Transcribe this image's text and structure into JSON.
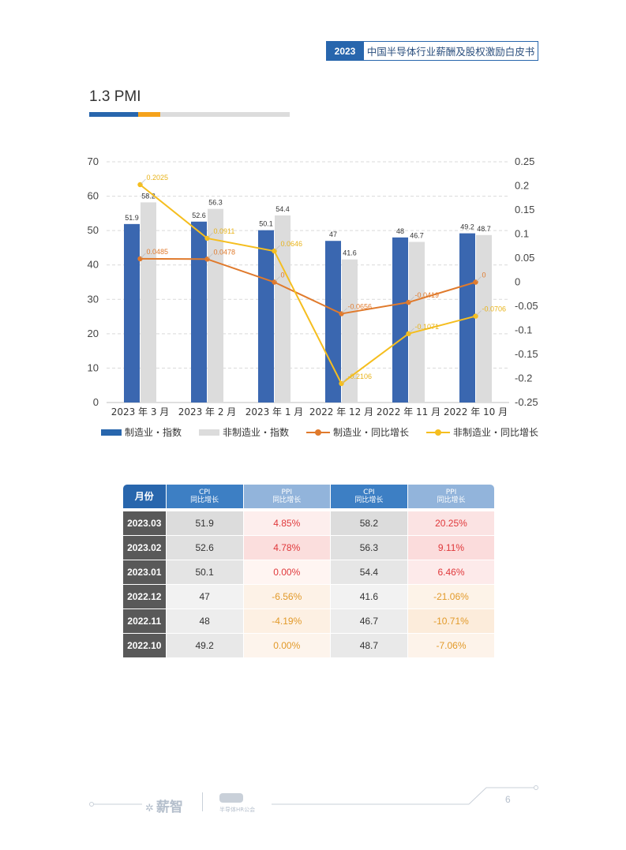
{
  "header": {
    "year": "2023",
    "title": "中国半导体行业薪酬及股权激励白皮书"
  },
  "section": {
    "title": "1.3 PMI"
  },
  "colors": {
    "manufacturing": "#3a67b0",
    "non_manufacturing": "#dcdcdc",
    "mfg_growth": "#e07a2c",
    "nonmfg_growth": "#f5be1f",
    "brand": "#2866ad"
  },
  "chart_data": {
    "type": "bar",
    "categories": [
      "2023 年 3 月",
      "2023 年 2 月",
      "2023 年 1 月",
      "2022 年 12 月",
      "2022 年 11 月",
      "2022 年 10 月"
    ],
    "series": [
      {
        "name": "制造业・指数",
        "type": "bar",
        "axis": "left",
        "values": [
          51.9,
          52.6,
          50.1,
          47,
          48,
          49.2
        ],
        "labels": [
          "51.9",
          "52.6",
          "50.1",
          "47",
          "48",
          "49.2"
        ]
      },
      {
        "name": "非制造业・指数",
        "type": "bar",
        "axis": "left",
        "values": [
          58.2,
          56.3,
          54.4,
          41.6,
          46.7,
          48.7
        ],
        "labels": [
          "58.2",
          "56.3",
          "54.4",
          "41.6",
          "46.7",
          "48.7"
        ]
      },
      {
        "name": "制造业・同比增长",
        "type": "line",
        "axis": "right",
        "values": [
          0.0485,
          0.0478,
          0,
          -0.0656,
          -0.0419,
          0
        ],
        "labels": [
          "0.0485",
          "0.0478",
          "0",
          "-0.0656",
          "-0.0419",
          "0"
        ]
      },
      {
        "name": "非制造业・同比增长",
        "type": "line",
        "axis": "right",
        "values": [
          0.2025,
          0.0911,
          0.0646,
          -0.2106,
          -0.1071,
          -0.0706
        ],
        "labels": [
          "0.2025",
          "0.0911",
          "0.0646",
          "-0.2106",
          "-0.1071",
          "-0.0706"
        ]
      }
    ],
    "y_left": {
      "min": 0,
      "max": 70,
      "ticks": [
        "0",
        "10",
        "20",
        "30",
        "40",
        "50",
        "60",
        "70"
      ]
    },
    "y_right": {
      "min": -0.25,
      "max": 0.25,
      "ticks": [
        "-0.25",
        "-0.2",
        "-0.15",
        "-0.1",
        "-0.05",
        "0",
        "0.05",
        "0.1",
        "0.15",
        "0.2",
        "0.25"
      ]
    },
    "grid": true,
    "legend_position": "bottom"
  },
  "table": {
    "headers": [
      {
        "line1": "月份",
        "line2": ""
      },
      {
        "line1": "CPI",
        "line2": "同比增长"
      },
      {
        "line1": "PPI",
        "line2": "同比增长"
      },
      {
        "line1": "CPI",
        "line2": "同比增长"
      },
      {
        "line1": "PPI",
        "line2": "同比增长"
      }
    ],
    "rows": [
      {
        "month": "2023.03",
        "cpi1": "51.9",
        "ppi1": "4.85%",
        "cpi2": "58.2",
        "ppi2": "20.25%"
      },
      {
        "month": "2023.02",
        "cpi1": "52.6",
        "ppi1": "4.78%",
        "cpi2": "56.3",
        "ppi2": "9.11%"
      },
      {
        "month": "2023.01",
        "cpi1": "50.1",
        "ppi1": "0.00%",
        "cpi2": "54.4",
        "ppi2": "6.46%"
      },
      {
        "month": "2022.12",
        "cpi1": "47",
        "ppi1": "-6.56%",
        "cpi2": "41.6",
        "ppi2": "-21.06%"
      },
      {
        "month": "2022.11",
        "cpi1": "48",
        "ppi1": "-4.19%",
        "cpi2": "46.7",
        "ppi2": "-10.71%"
      },
      {
        "month": "2022.10",
        "cpi1": "49.2",
        "ppi1": "0.00%",
        "cpi2": "48.7",
        "ppi2": "-7.06%"
      }
    ]
  },
  "footer": {
    "logo": "薪智",
    "sub": "半导体HR公会",
    "page": "6"
  }
}
